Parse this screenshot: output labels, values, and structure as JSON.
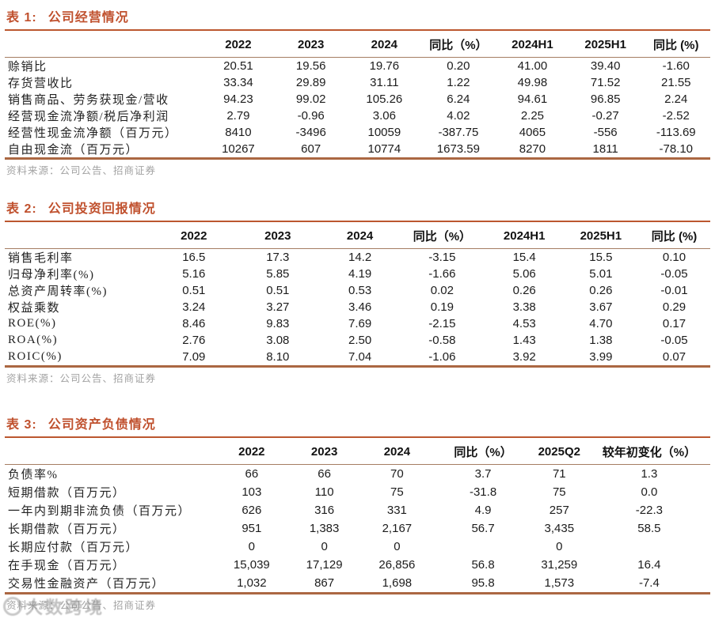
{
  "colors": {
    "accent_title": "#c0512e",
    "rule_title": "#bc572f",
    "rule_header_thin": "#a57d62",
    "rule_table_bottom": "#ab6742",
    "source_text": "#a3a3a3",
    "watermark_gray": "#8f8f8f"
  },
  "watermark": {
    "text": "大数跨境"
  },
  "tables": [
    {
      "title_label": "表 1:",
      "title_text": "公司经营情况",
      "headers": [
        "",
        "2022",
        "2023",
        "2024",
        "同比（%）",
        "2024H1",
        "2025H1",
        "同比 (%)"
      ],
      "rows": [
        [
          "赊销比",
          "20.51",
          "19.56",
          "19.76",
          "0.20",
          "41.00",
          "39.40",
          "-1.60"
        ],
        [
          "存货营收比",
          "33.34",
          "29.89",
          "31.11",
          "1.22",
          "49.98",
          "71.52",
          "21.55"
        ],
        [
          "销售商品、劳务获现金/营收",
          "94.23",
          "99.02",
          "105.26",
          "6.24",
          "94.61",
          "96.85",
          "2.24"
        ],
        [
          "经营现金流净额/税后净利润",
          "2.79",
          "-0.96",
          "3.06",
          "4.02",
          "2.25",
          "-0.27",
          "-2.52"
        ],
        [
          "经营性现金流净额（百万元）",
          "8410",
          "-3496",
          "10059",
          "-387.75",
          "4065",
          "-556",
          "-113.69"
        ],
        [
          "自由现金流（百万元）",
          "10267",
          "607",
          "10774",
          "1673.59",
          "8270",
          "1811",
          "-78.10"
        ]
      ],
      "source": "资料来源：公司公告、招商证券"
    },
    {
      "title_label": "表 2:",
      "title_text": "公司投资回报情况",
      "headers": [
        "",
        "2022",
        "2023",
        "2024",
        "同比（%）",
        "2024H1",
        "2025H1",
        "同比 (%)"
      ],
      "rows": [
        [
          "销售毛利率",
          "16.5",
          "17.3",
          "14.2",
          "-3.15",
          "15.4",
          "15.5",
          "0.10"
        ],
        [
          "归母净利率(%)",
          "5.16",
          "5.85",
          "4.19",
          "-1.66",
          "5.06",
          "5.01",
          "-0.05"
        ],
        [
          "总资产周转率(%)",
          "0.51",
          "0.51",
          "0.53",
          "0.02",
          "0.26",
          "0.26",
          "-0.01"
        ],
        [
          "权益乘数",
          "3.24",
          "3.27",
          "3.46",
          "0.19",
          "3.38",
          "3.67",
          "0.29"
        ],
        [
          "ROE(%)",
          "8.46",
          "9.83",
          "7.69",
          "-2.15",
          "4.53",
          "4.70",
          "0.17"
        ],
        [
          "ROA(%)",
          "2.76",
          "3.08",
          "2.50",
          "-0.58",
          "1.43",
          "1.38",
          "-0.05"
        ],
        [
          "ROIC(%)",
          "7.09",
          "8.10",
          "7.04",
          "-1.06",
          "3.92",
          "3.99",
          "0.07"
        ]
      ],
      "source": "资料来源：公司公告、招商证券"
    },
    {
      "title_label": "表 3:",
      "title_text": "公司资产负债情况",
      "headers": [
        "",
        "2022",
        "2023",
        "2024",
        "同比（%）",
        "2025Q2",
        "较年初变化（%）"
      ],
      "rows": [
        [
          "负债率%",
          "66",
          "66",
          "70",
          "3.7",
          "71",
          "1.3"
        ],
        [
          "短期借款（百万元）",
          "103",
          "110",
          "75",
          "-31.8",
          "75",
          "0.0"
        ],
        [
          "一年内到期非流负债（百万元）",
          "626",
          "316",
          "331",
          "4.9",
          "257",
          "-22.3"
        ],
        [
          "长期借款（百万元）",
          "951",
          "1,383",
          "2,167",
          "56.7",
          "3,435",
          "58.5"
        ],
        [
          "长期应付款（百万元）",
          "0",
          "0",
          "0",
          "",
          "0",
          ""
        ],
        [
          "在手现金（百万元）",
          "15,039",
          "17,129",
          "26,856",
          "56.8",
          "31,259",
          "16.4"
        ],
        [
          "交易性金融资产（百万元）",
          "1,032",
          "867",
          "1,698",
          "95.8",
          "1,573",
          "-7.4"
        ]
      ],
      "source": "资料来源：公司公告、招商证券"
    }
  ]
}
